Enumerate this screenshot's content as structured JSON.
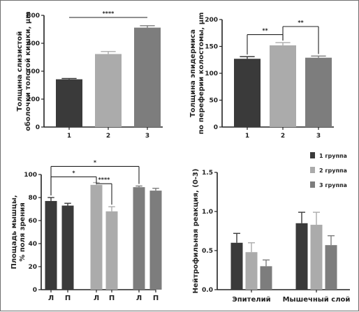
{
  "colors": {
    "c1": "#3a3a3a",
    "c2": "#ababab",
    "c3": "#7d7d7d",
    "axis": "#222222",
    "frame": "#6f6f6f"
  },
  "chart_data": [
    {
      "id": "A",
      "type": "bar",
      "ylabel_lines": [
        "Толщина слизистой",
        "оболочки толстой кишки, µm"
      ],
      "ylim": [
        0,
        800
      ],
      "yticks": [
        0,
        200,
        400,
        600,
        800
      ],
      "categories": [
        "1",
        "2",
        "3"
      ],
      "values": [
        342,
        523,
        712
      ],
      "errors": [
        6,
        18,
        14
      ],
      "colors": [
        "#3a3a3a",
        "#ababab",
        "#7d7d7d"
      ],
      "significance": [
        {
          "from": 0,
          "to": 2,
          "label": "****",
          "y": 785,
          "drops": false
        }
      ]
    },
    {
      "id": "B",
      "type": "bar",
      "ylabel_lines": [
        "Толщина эпидермиса",
        "по переферии колостомы, µm"
      ],
      "ylim": [
        0,
        200
      ],
      "yticks": [
        0,
        50,
        100,
        150,
        200
      ],
      "categories": [
        "1",
        "2",
        "3"
      ],
      "values": [
        127,
        152,
        129
      ],
      "errors": [
        4,
        5,
        3
      ],
      "colors": [
        "#3a3a3a",
        "#ababab",
        "#7d7d7d"
      ],
      "significance": [
        {
          "from": 0,
          "to": 1,
          "label": "**",
          "y": 172,
          "drops": true
        },
        {
          "from": 1,
          "to": 2,
          "label": "**",
          "y": 187,
          "drops": true
        }
      ]
    },
    {
      "id": "C",
      "type": "bar",
      "ylabel_lines": [
        "Площадь мышцы,",
        "% поля зрения"
      ],
      "ylim": [
        0,
        100
      ],
      "yticks": [
        0,
        20,
        40,
        60,
        80,
        100
      ],
      "categories": [
        "Л",
        "П",
        "Л",
        "П",
        "Л",
        "П"
      ],
      "values": [
        77,
        73,
        91,
        68,
        89,
        86
      ],
      "errors": [
        3,
        2,
        2,
        4,
        1,
        2
      ],
      "colors": [
        "#3a3a3a",
        "#3a3a3a",
        "#ababab",
        "#ababab",
        "#7d7d7d",
        "#7d7d7d"
      ],
      "significance": [
        {
          "from": 0,
          "to": 4,
          "label": "*",
          "y": 107,
          "drops": true
        },
        {
          "from": 0,
          "to": 2,
          "label": "*",
          "y": 98,
          "drops": true
        },
        {
          "from": 2,
          "to": 3,
          "label": "****",
          "y": 92,
          "drops": true
        }
      ]
    },
    {
      "id": "D",
      "type": "bar",
      "ylabel_lines": [
        "Нейтрофильная реакция, (0-3)"
      ],
      "ylim": [
        0,
        1.5
      ],
      "yticks": [
        "0.0",
        "0.5",
        "1.0",
        "1.5"
      ],
      "categories": [
        "Эпителий",
        "Мышечный слой"
      ],
      "series": [
        {
          "name": "1 группа",
          "values": [
            0.6,
            0.85
          ],
          "errors": [
            0.12,
            0.14
          ]
        },
        {
          "name": "2 группа",
          "values": [
            0.48,
            0.83
          ],
          "errors": [
            0.12,
            0.16
          ]
        },
        {
          "name": "3 группа",
          "values": [
            0.3,
            0.57
          ],
          "errors": [
            0.08,
            0.12
          ]
        }
      ],
      "legend": "top-right"
    }
  ]
}
